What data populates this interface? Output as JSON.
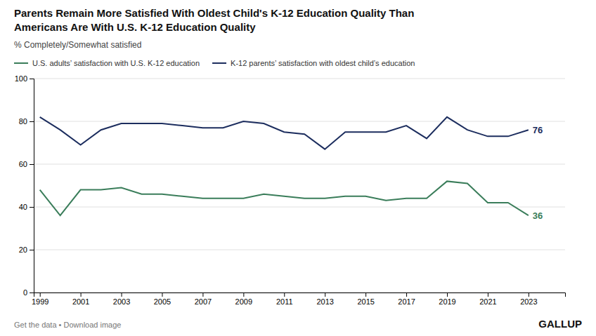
{
  "chart_data": {
    "type": "line",
    "title": [
      "Parents Remain More Satisfied With Oldest Child's K-12 Education Quality Than",
      "Americans Are With U.S. K-12 Education Quality"
    ],
    "subtitle": "% Completely/Somewhat satisfied",
    "x": [
      1999,
      2000,
      2001,
      2002,
      2003,
      2004,
      2005,
      2006,
      2007,
      2008,
      2009,
      2010,
      2011,
      2012,
      2013,
      2014,
      2015,
      2016,
      2017,
      2018,
      2019,
      2020,
      2021,
      2022,
      2023
    ],
    "series": [
      {
        "name": "U.S. adults’ satisfaction with U.S. K-12 education",
        "color": "#3a7d5a",
        "values": [
          48,
          36,
          48,
          48,
          49,
          46,
          46,
          45,
          44,
          44,
          44,
          46,
          45,
          44,
          44,
          45,
          45,
          43,
          44,
          44,
          52,
          51,
          42,
          42,
          36
        ]
      },
      {
        "name": "K-12 parents’ satisfaction with oldest child’s education",
        "color": "#1c2d5e",
        "values": [
          82,
          76,
          69,
          76,
          79,
          79,
          79,
          78,
          77,
          77,
          80,
          79,
          75,
          74,
          67,
          75,
          75,
          75,
          78,
          72,
          82,
          76,
          73,
          73,
          76
        ]
      }
    ],
    "xlim": [
      1998.7,
      2024.8
    ],
    "xticks": [
      1999,
      2001,
      2003,
      2005,
      2007,
      2009,
      2011,
      2013,
      2015,
      2017,
      2019,
      2021,
      2023
    ],
    "ylim": [
      0,
      100
    ],
    "yticks": [
      0,
      20,
      40,
      60,
      80,
      100
    ],
    "grid": "y",
    "legend": "upper left",
    "annotations": [
      {
        "text": "Get the data • Download image"
      },
      {
        "text": "GALLUP"
      },
      {
        "text": "76",
        "x": 2023,
        "y": 76
      },
      {
        "text": "36",
        "x": 2023,
        "y": 36
      }
    ]
  }
}
